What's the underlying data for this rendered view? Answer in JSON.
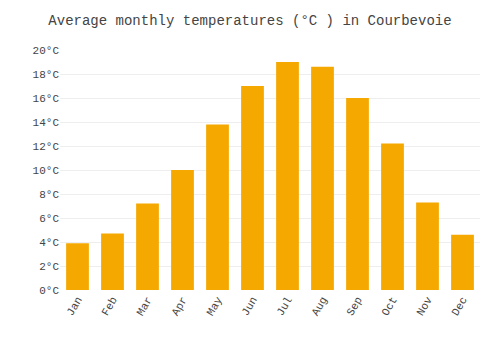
{
  "chart_data": {
    "type": "bar",
    "title": "Average monthly temperatures (°C ) in Courbevoie",
    "categories": [
      "Jan",
      "Feb",
      "Mar",
      "Apr",
      "May",
      "Jun",
      "Jul",
      "Aug",
      "Sep",
      "Oct",
      "Nov",
      "Dec"
    ],
    "values": [
      3.9,
      4.7,
      7.2,
      10.0,
      13.8,
      17.0,
      19.0,
      18.6,
      16.0,
      12.2,
      7.3,
      4.6
    ],
    "color": "#F5A800",
    "ylim": [
      0,
      20
    ],
    "yticks": [
      {
        "value": 0,
        "label": "0°C"
      },
      {
        "value": 2,
        "label": "2°C"
      },
      {
        "value": 4,
        "label": "4°C"
      },
      {
        "value": 6,
        "label": "6°C"
      },
      {
        "value": 8,
        "label": "8°C"
      },
      {
        "value": 10,
        "label": "10°C"
      },
      {
        "value": 12,
        "label": "12°C"
      },
      {
        "value": 14,
        "label": "14°C"
      },
      {
        "value": 16,
        "label": "16°C"
      },
      {
        "value": 18,
        "label": "18°C"
      },
      {
        "value": 20,
        "label": "20°C"
      }
    ],
    "grid": true
  }
}
